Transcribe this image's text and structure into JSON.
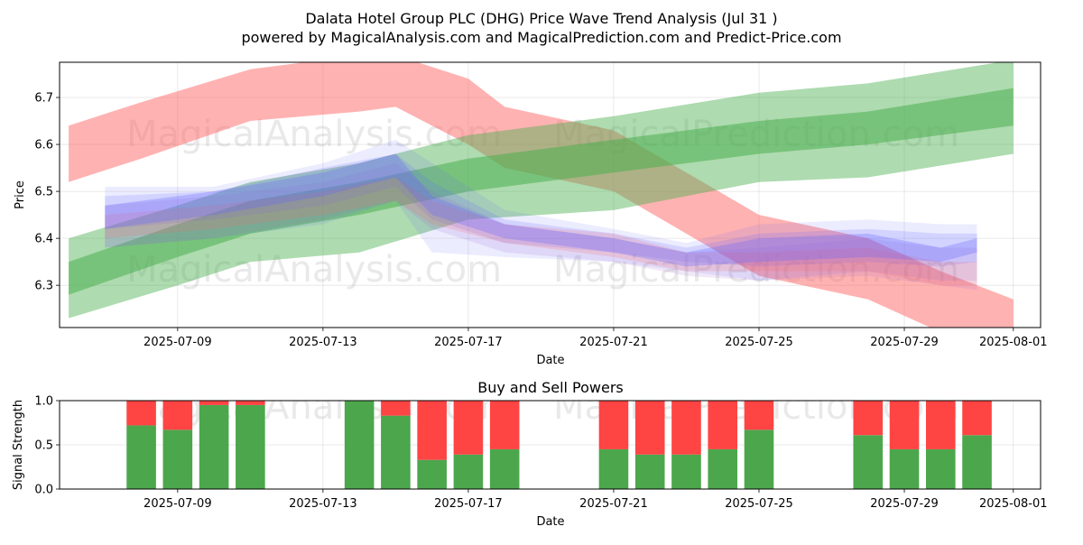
{
  "title": "Dalata Hotel Group PLC (DHG) Price Wave Trend Analysis (Jul 31 )",
  "subtitle": "powered by MagicalAnalysis.com and MagicalPrediction.com and Predict-Price.com",
  "watermarks": [
    "MagicalAnalysis.com",
    "MagicalPrediction.com"
  ],
  "colors": {
    "buy": "#4ca64c",
    "sell": "#ff4444",
    "red_band": "#ff6666",
    "green_band": "#4caf50",
    "blue_band": "#6666ff",
    "purple_band": "#9966cc"
  },
  "chart_data": [
    {
      "type": "area",
      "xlabel": "Date",
      "ylabel": "Price",
      "x_ticks": [
        "2025-07-09",
        "2025-07-13",
        "2025-07-17",
        "2025-07-21",
        "2025-07-25",
        "2025-07-29",
        "2025-08-01"
      ],
      "y_ticks": [
        6.3,
        6.4,
        6.5,
        6.6,
        6.7
      ],
      "xlim": [
        "2025-07-05 18:00",
        "2025-08-01 18:00"
      ],
      "ylim": [
        6.21,
        6.775
      ],
      "grid": true,
      "series": [
        {
          "color": "red",
          "opacity": 0.5,
          "x": [
            "2025-07-06",
            "2025-07-08",
            "2025-07-11",
            "2025-07-14",
            "2025-07-15",
            "2025-07-17",
            "2025-07-18",
            "2025-07-21",
            "2025-07-25",
            "2025-07-28",
            "2025-07-30",
            "2025-08-01"
          ],
          "upper": [
            6.64,
            6.69,
            6.76,
            6.79,
            6.79,
            6.74,
            6.68,
            6.63,
            6.45,
            6.4,
            6.33,
            6.27
          ],
          "lower": [
            6.52,
            6.57,
            6.65,
            6.67,
            6.68,
            6.6,
            6.55,
            6.5,
            6.32,
            6.27,
            6.2,
            6.15
          ]
        },
        {
          "color": "green",
          "opacity": 0.45,
          "x": [
            "2025-07-06",
            "2025-07-09",
            "2025-07-11",
            "2025-07-14",
            "2025-07-17",
            "2025-07-21",
            "2025-07-25",
            "2025-07-28",
            "2025-08-01"
          ],
          "upper": [
            6.4,
            6.47,
            6.52,
            6.56,
            6.62,
            6.66,
            6.71,
            6.73,
            6.78
          ],
          "lower": [
            6.23,
            6.3,
            6.35,
            6.37,
            6.44,
            6.46,
            6.52,
            6.53,
            6.58
          ]
        },
        {
          "color": "green",
          "opacity": 0.55,
          "x": [
            "2025-07-06",
            "2025-07-09",
            "2025-07-11",
            "2025-07-14",
            "2025-07-17",
            "2025-07-21",
            "2025-07-25",
            "2025-07-28",
            "2025-08-01"
          ],
          "upper": [
            6.35,
            6.43,
            6.48,
            6.52,
            6.57,
            6.61,
            6.65,
            6.67,
            6.72
          ],
          "lower": [
            6.28,
            6.36,
            6.41,
            6.45,
            6.5,
            6.54,
            6.58,
            6.6,
            6.64
          ]
        },
        {
          "color": "blue",
          "opacity": 0.12,
          "x": [
            "2025-07-07",
            "2025-07-10",
            "2025-07-13",
            "2025-07-15",
            "2025-07-16",
            "2025-07-18",
            "2025-07-21",
            "2025-07-23",
            "2025-07-25",
            "2025-07-28",
            "2025-07-30",
            "2025-07-31"
          ],
          "upper": [
            6.51,
            6.51,
            6.56,
            6.61,
            6.56,
            6.46,
            6.42,
            6.39,
            6.43,
            6.44,
            6.43,
            6.43
          ],
          "lower": [
            6.38,
            6.4,
            6.43,
            6.48,
            6.37,
            6.36,
            6.35,
            6.33,
            6.31,
            6.33,
            6.31,
            6.31
          ]
        },
        {
          "color": "blue",
          "opacity": 0.18,
          "x": [
            "2025-07-07",
            "2025-07-10",
            "2025-07-13",
            "2025-07-15",
            "2025-07-16",
            "2025-07-18",
            "2025-07-21",
            "2025-07-23",
            "2025-07-25",
            "2025-07-28",
            "2025-07-30",
            "2025-07-31"
          ],
          "upper": [
            6.49,
            6.5,
            6.55,
            6.58,
            6.52,
            6.44,
            6.41,
            6.38,
            6.41,
            6.42,
            6.41,
            6.41
          ],
          "lower": [
            6.42,
            6.44,
            6.47,
            6.51,
            6.44,
            6.39,
            6.37,
            6.35,
            6.34,
            6.35,
            6.34,
            6.35
          ]
        },
        {
          "color": "purple",
          "opacity": 0.15,
          "x": [
            "2025-07-07",
            "2025-07-10",
            "2025-07-13",
            "2025-07-15",
            "2025-07-16",
            "2025-07-18",
            "2025-07-21",
            "2025-07-23",
            "2025-07-25",
            "2025-07-28",
            "2025-07-30",
            "2025-07-31"
          ],
          "upper": [
            6.47,
            6.49,
            6.52,
            6.56,
            6.5,
            6.43,
            6.4,
            6.37,
            6.38,
            6.4,
            6.38,
            6.38
          ],
          "lower": [
            6.38,
            6.4,
            6.44,
            6.48,
            6.42,
            6.37,
            6.35,
            6.32,
            6.31,
            6.32,
            6.3,
            6.29
          ]
        },
        {
          "color": "red",
          "opacity": 0.18,
          "x": [
            "2025-07-07",
            "2025-07-10",
            "2025-07-13",
            "2025-07-15",
            "2025-07-16",
            "2025-07-18",
            "2025-07-21",
            "2025-07-23",
            "2025-07-25",
            "2025-07-28",
            "2025-07-30",
            "2025-07-31"
          ],
          "upper": [
            6.45,
            6.47,
            6.5,
            6.53,
            6.48,
            6.43,
            6.41,
            6.37,
            6.37,
            6.38,
            6.35,
            6.35
          ],
          "lower": [
            6.4,
            6.42,
            6.45,
            6.48,
            6.43,
            6.39,
            6.36,
            6.33,
            6.33,
            6.33,
            6.3,
            6.3
          ]
        },
        {
          "color": "blue",
          "opacity": 0.3,
          "x": [
            "2025-07-07",
            "2025-07-10",
            "2025-07-13",
            "2025-07-15",
            "2025-07-16",
            "2025-07-18",
            "2025-07-21",
            "2025-07-23",
            "2025-07-25",
            "2025-07-28",
            "2025-07-30",
            "2025-07-31"
          ],
          "upper": [
            6.47,
            6.5,
            6.54,
            6.58,
            6.49,
            6.43,
            6.4,
            6.37,
            6.4,
            6.41,
            6.38,
            6.4
          ],
          "lower": [
            6.42,
            6.45,
            6.49,
            6.53,
            6.45,
            6.4,
            6.37,
            6.34,
            6.35,
            6.36,
            6.35,
            6.37
          ]
        }
      ]
    },
    {
      "type": "bar",
      "title": "Buy and Sell Powers",
      "xlabel": "Date",
      "ylabel": "Signal Strength",
      "x_ticks": [
        "2025-07-09",
        "2025-07-13",
        "2025-07-17",
        "2025-07-21",
        "2025-07-25",
        "2025-07-29",
        "2025-08-01"
      ],
      "y_ticks": [
        0.0,
        0.5,
        1.0
      ],
      "ylim": [
        0,
        1
      ],
      "grid": true,
      "categories": [
        "2025-07-08",
        "2025-07-09",
        "2025-07-10",
        "2025-07-11",
        "2025-07-14",
        "2025-07-15",
        "2025-07-16",
        "2025-07-17",
        "2025-07-18",
        "2025-07-21",
        "2025-07-22",
        "2025-07-23",
        "2025-07-24",
        "2025-07-25",
        "2025-07-28",
        "2025-07-29",
        "2025-07-30",
        "2025-07-31"
      ],
      "series": [
        {
          "name": "buy",
          "values": [
            0.72,
            0.67,
            0.95,
            0.95,
            1.0,
            0.83,
            0.33,
            0.39,
            0.45,
            0.45,
            0.39,
            0.39,
            0.45,
            0.67,
            0.61,
            0.45,
            0.45,
            0.61
          ]
        },
        {
          "name": "sell",
          "values": [
            0.28,
            0.33,
            0.05,
            0.05,
            0.0,
            0.17,
            0.67,
            0.61,
            0.55,
            0.55,
            0.61,
            0.61,
            0.55,
            0.33,
            0.39,
            0.55,
            0.55,
            0.39
          ]
        }
      ]
    }
  ]
}
